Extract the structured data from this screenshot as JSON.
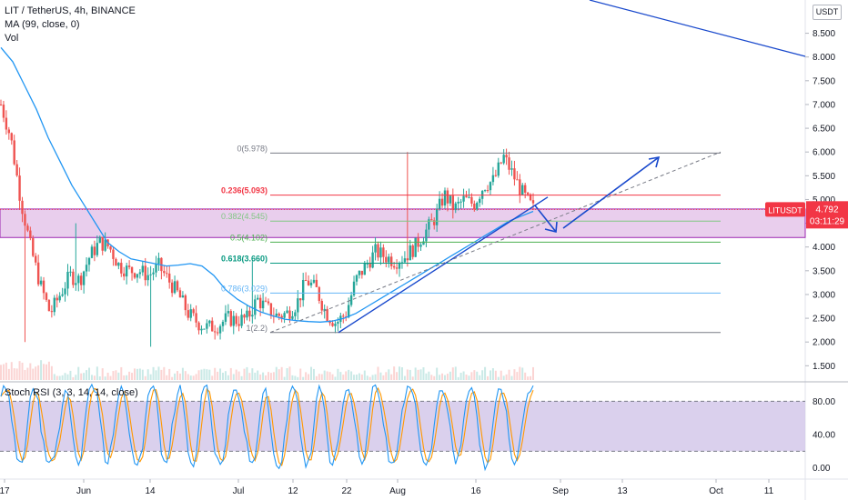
{
  "header": {
    "symbol_line": "LIT / TetherUS, 4h, BINANCE",
    "ma_label": "MA (99, close, 0)",
    "vol_label": "Vol",
    "currency_button": "USDT",
    "stoch_label": "Stoch RSI (3, 3, 14, 14, close)"
  },
  "price_tag": {
    "ticker": "LITUSDT",
    "price": "4.792",
    "countdown": "03:11:29",
    "color": "#f23645"
  },
  "colors": {
    "up": "#26a69a",
    "down": "#ef5350",
    "ma": "#2196f3",
    "zone_fill": "#e1bee7",
    "zone_border": "#9c27b0",
    "stoch_k": "#2196f3",
    "stoch_d": "#ff9800",
    "stoch_band": "#d1c4e9",
    "trend": "#1848cc"
  },
  "chart_data": [
    {
      "type": "candlestick",
      "x_tick_labels": [
        "17",
        "Jun",
        "14",
        "Jul",
        "12",
        "22",
        "Aug",
        "16",
        "Sep",
        "13",
        "Oct",
        "11"
      ],
      "y_tick_labels": [
        "8.500",
        "8.000",
        "7.500",
        "7.000",
        "6.500",
        "6.000",
        "5.500",
        "5.000",
        "4.500",
        "4.000",
        "3.500",
        "3.000",
        "2.500",
        "2.000",
        "1.500"
      ],
      "ylim": [
        1.2,
        9.2
      ],
      "approx_closes": [
        7.0,
        6.3,
        5.0,
        4.0,
        3.2,
        2.6,
        3.0,
        3.4,
        3.3,
        3.8,
        4.1,
        4.0,
        3.6,
        3.5,
        3.5,
        3.4,
        3.6,
        3.3,
        3.0,
        2.6,
        2.4,
        2.3,
        2.35,
        2.5,
        2.45,
        2.5,
        2.9,
        2.7,
        2.55,
        2.6,
        2.8,
        3.3,
        3.1,
        2.6,
        2.4,
        2.6,
        3.3,
        3.6,
        3.9,
        3.8,
        3.7,
        3.8,
        4.0,
        4.3,
        4.6,
        5.1,
        4.8,
        5.0,
        4.9,
        5.3,
        5.4,
        5.9,
        5.5,
        5.1,
        4.8
      ],
      "ma_99": [
        8.2,
        7.9,
        7.4,
        6.9,
        6.3,
        5.8,
        5.3,
        4.9,
        4.5,
        4.1,
        3.9,
        3.75,
        3.7,
        3.65,
        3.6,
        3.62,
        3.65,
        3.6,
        3.4,
        3.1,
        2.9,
        2.75,
        2.63,
        2.55,
        2.48,
        2.45,
        2.43,
        2.42,
        2.44,
        2.5,
        2.6,
        2.75,
        2.9,
        3.05,
        3.2,
        3.35,
        3.5,
        3.65,
        3.8,
        3.95,
        4.1,
        4.25,
        4.4,
        4.55,
        4.65,
        4.75
      ],
      "current_price": 4.792,
      "fib_levels": [
        {
          "label": "0(5.978)",
          "value": 5.978,
          "color": "#787b86",
          "bold": false
        },
        {
          "label": "0.236(5.093)",
          "value": 5.093,
          "color": "#f23645",
          "bold": true
        },
        {
          "label": "0.382(4.545)",
          "value": 4.545,
          "color": "#81c784",
          "bold": false
        },
        {
          "label": "0.5(4.102)",
          "value": 4.102,
          "color": "#4caf50",
          "bold": false
        },
        {
          "label": "0.618(3.660)",
          "value": 3.66,
          "color": "#089981",
          "bold": true
        },
        {
          "label": "0.786(3.029)",
          "value": 3.029,
          "color": "#64b5f6",
          "bold": false
        },
        {
          "label": "1(2.2)",
          "value": 2.2,
          "color": "#787b86",
          "bold": false
        }
      ],
      "support_zone": [
        4.2,
        4.8
      ]
    },
    {
      "type": "line",
      "title": "Stoch RSI (3, 3, 14, 14, close)",
      "y_tick_labels": [
        "80.00",
        "40.00",
        "0.00"
      ],
      "ylim": [
        -8,
        100
      ],
      "band": [
        20,
        80
      ]
    }
  ]
}
